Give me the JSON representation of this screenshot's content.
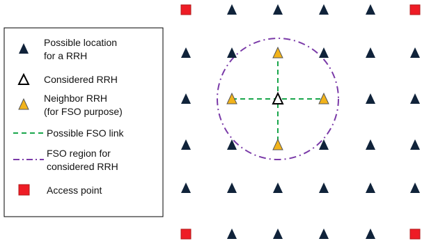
{
  "legend": {
    "possible_location": [
      "Possible location",
      "for a RRH"
    ],
    "considered": [
      "Considered RRH"
    ],
    "neighbor": [
      "Neighbor RRH",
      "(for FSO purpose)"
    ],
    "fso_link": [
      "Possible FSO link"
    ],
    "fso_region": [
      "FSO region for",
      "considered RRH"
    ],
    "access_point": [
      "Access point"
    ]
  },
  "colors": {
    "rrh": "#10233a",
    "neighbor_fill": "#f2b31a",
    "neighbor_stroke": "#555555",
    "considered_fill": "#ffffff",
    "considered_stroke": "#000000",
    "fso_link": "#19a64b",
    "fso_region": "#7a3aa8",
    "access_point_fill": "#ee1c25",
    "access_point_stroke": "#b01a1a"
  },
  "grid": {
    "rows": 6,
    "cols": 6,
    "access_points": [
      [
        0,
        0
      ],
      [
        0,
        5
      ],
      [
        5,
        0
      ],
      [
        5,
        5
      ]
    ],
    "considered": [
      2,
      2
    ],
    "neighbors": [
      [
        1,
        2
      ],
      [
        2,
        1
      ],
      [
        2,
        3
      ],
      [
        3,
        2
      ]
    ],
    "fso_links": [
      [
        [
          1,
          2
        ],
        [
          3,
          2
        ]
      ],
      [
        [
          2,
          1
        ],
        [
          2,
          3
        ]
      ]
    ]
  }
}
